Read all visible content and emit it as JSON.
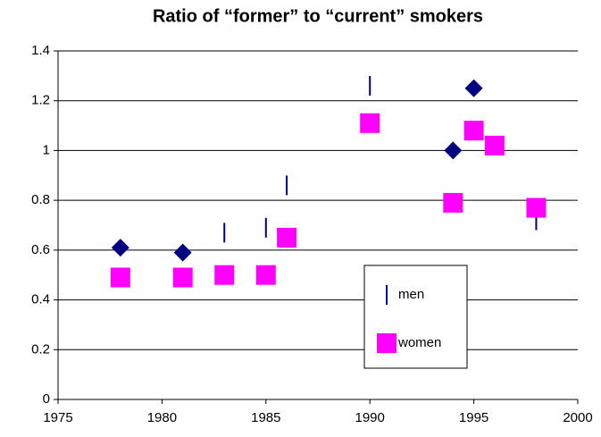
{
  "chart_data": {
    "type": "scatter",
    "title": "Ratio of “former” to “current” smokers",
    "series": [
      {
        "name": "men",
        "color": "#000080",
        "marker": "dash",
        "x": [
          1983,
          1985,
          1986,
          1990,
          1998
        ],
        "values": [
          0.67,
          0.69,
          0.86,
          1.26,
          0.72
        ]
      },
      {
        "color": "#000080",
        "marker": "diamond",
        "x": [
          1978,
          1981,
          1994,
          1995
        ],
        "values": [
          0.61,
          0.59,
          1.0,
          1.25
        ]
      },
      {
        "name": "women",
        "color": "#ff00ff",
        "marker": "square",
        "x": [
          1978,
          1981,
          1983,
          1985,
          1986,
          1990,
          1994,
          1995,
          1996,
          1998
        ],
        "values": [
          0.49,
          0.49,
          0.5,
          0.5,
          0.65,
          1.11,
          0.79,
          1.08,
          1.02,
          0.77
        ]
      }
    ],
    "xlim": [
      1975,
      2000
    ],
    "xticks": [
      1975,
      1980,
      1985,
      1990,
      1995,
      2000
    ],
    "ylim": [
      0,
      1.4
    ],
    "yticks": [
      0,
      0.2,
      0.4,
      0.6,
      0.8,
      1,
      1.2,
      1.4
    ],
    "grid": true
  }
}
